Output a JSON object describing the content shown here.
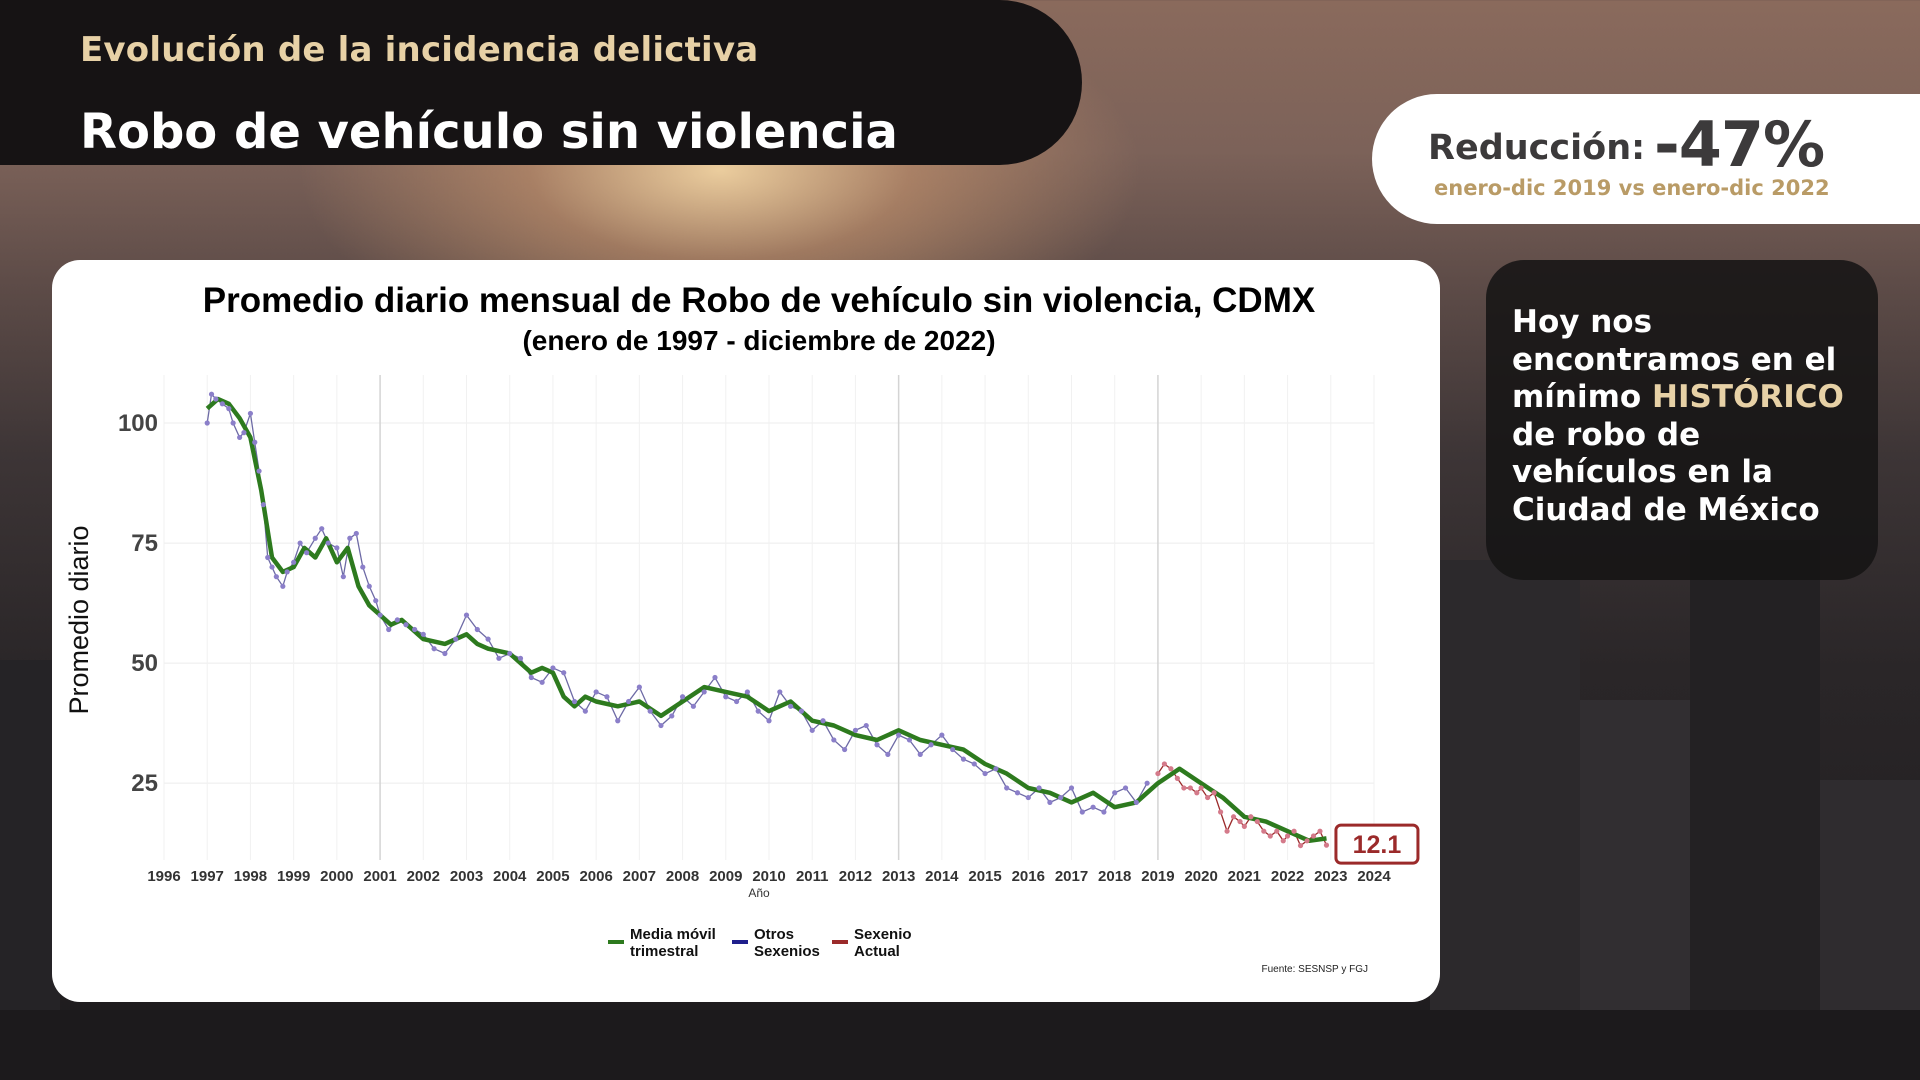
{
  "header": {
    "kicker": "Evolución de la incidencia delictiva",
    "title": "Robo de vehículo sin violencia"
  },
  "reduction": {
    "label": "Reducción:",
    "value": "-47%",
    "period": "enero-dic 2019 vs enero-dic 2022"
  },
  "side_message": {
    "line1": "Hoy nos",
    "line2": "encontramos en el",
    "line3_pre": "mínimo",
    "line3_highlight": "HISTÓRICO",
    "line4": "de robo de",
    "line5": "vehículos en la",
    "line6": "Ciudad de México"
  },
  "chart_data": {
    "type": "line",
    "title": "Promedio diario mensual de Robo de vehículo sin violencia, CDMX",
    "subtitle": "(enero de 1997 - diciembre de 2022)",
    "xlabel": "Año",
    "ylabel": "Promedio diario",
    "xlim": [
      1996,
      2024
    ],
    "ylim": [
      9,
      110
    ],
    "x_ticks": [
      1996,
      1997,
      1998,
      1999,
      2000,
      2001,
      2002,
      2003,
      2004,
      2005,
      2006,
      2007,
      2008,
      2009,
      2010,
      2011,
      2012,
      2013,
      2014,
      2015,
      2016,
      2017,
      2018,
      2019,
      2020,
      2021,
      2022,
      2023,
      2024
    ],
    "y_ticks": [
      25,
      50,
      75,
      100
    ],
    "vertical_lines": [
      2001,
      2013,
      2019
    ],
    "colors": {
      "moving_average": "#2d7a1e",
      "other_terms": "#1f1f8c",
      "current_term": "#9b2a2a",
      "points": "#8b7fc9",
      "current_points": "#d47a8a"
    },
    "series": [
      {
        "name": "Media móvil trimestral",
        "x": [
          1997.0,
          1997.25,
          1997.5,
          1997.75,
          1998.0,
          1998.25,
          1998.5,
          1998.75,
          1999.0,
          1999.25,
          1999.5,
          1999.75,
          2000.0,
          2000.25,
          2000.5,
          2000.75,
          2001.0,
          2001.25,
          2001.5,
          2001.75,
          2002.0,
          2002.5,
          2003.0,
          2003.25,
          2003.5,
          2004.0,
          2004.5,
          2004.75,
          2005.0,
          2005.25,
          2005.5,
          2005.75,
          2006.0,
          2006.5,
          2007.0,
          2007.5,
          2008.0,
          2008.5,
          2009.0,
          2009.5,
          2010.0,
          2010.5,
          2011.0,
          2011.5,
          2012.0,
          2012.5,
          2013.0,
          2013.5,
          2014.0,
          2014.5,
          2015.0,
          2015.5,
          2016.0,
          2016.5,
          2017.0,
          2017.5,
          2018.0,
          2018.5,
          2019.0,
          2019.5,
          2020.0,
          2020.5,
          2021.0,
          2021.5,
          2022.0,
          2022.5,
          2022.9
        ],
        "values": [
          103,
          105,
          104,
          101,
          97,
          86,
          72,
          69,
          70,
          74,
          72,
          76,
          71,
          74,
          66,
          62,
          60,
          58,
          59,
          57,
          55,
          54,
          56,
          54,
          53,
          52,
          48,
          49,
          48,
          43,
          41,
          43,
          42,
          41,
          42,
          39,
          42,
          45,
          44,
          43,
          40,
          42,
          38,
          37,
          35,
          34,
          36,
          34,
          33,
          32,
          29,
          27,
          24,
          23,
          21,
          23,
          20,
          21,
          25,
          28,
          25,
          22,
          18,
          17,
          15,
          13,
          13.5
        ]
      },
      {
        "name": "Otros Sexenios",
        "x": [
          1997.0,
          1997.1,
          1997.2,
          1997.35,
          1997.5,
          1997.6,
          1997.75,
          1997.85,
          1998.0,
          1998.1,
          1998.2,
          1998.3,
          1998.4,
          1998.5,
          1998.6,
          1998.75,
          1998.85,
          1999.0,
          1999.15,
          1999.3,
          1999.5,
          1999.65,
          1999.8,
          2000.0,
          2000.15,
          2000.3,
          2000.45,
          2000.6,
          2000.75,
          2000.9,
          2001.0,
          2001.2,
          2001.4,
          2001.6,
          2001.8,
          2002.0,
          2002.25,
          2002.5,
          2002.75,
          2003.0,
          2003.25,
          2003.5,
          2003.75,
          2004.0,
          2004.25,
          2004.5,
          2004.75,
          2005.0,
          2005.25,
          2005.5,
          2005.75,
          2006.0,
          2006.25,
          2006.5,
          2006.75,
          2007.0,
          2007.25,
          2007.5,
          2007.75,
          2008.0,
          2008.25,
          2008.5,
          2008.75,
          2009.0,
          2009.25,
          2009.5,
          2009.75,
          2010.0,
          2010.25,
          2010.5,
          2010.75,
          2011.0,
          2011.25,
          2011.5,
          2011.75,
          2012.0,
          2012.25,
          2012.5,
          2012.75,
          2013.0,
          2013.25,
          2013.5,
          2013.75,
          2014.0,
          2014.25,
          2014.5,
          2014.75,
          2015.0,
          2015.25,
          2015.5,
          2015.75,
          2016.0,
          2016.25,
          2016.5,
          2016.75,
          2017.0,
          2017.25,
          2017.5,
          2017.75,
          2018.0,
          2018.25,
          2018.5,
          2018.75
        ],
        "values": [
          100,
          106,
          105,
          104,
          103,
          100,
          97,
          98,
          102,
          96,
          90,
          83,
          72,
          70,
          68,
          66,
          69,
          71,
          75,
          73,
          76,
          78,
          75,
          74,
          68,
          76,
          77,
          70,
          66,
          63,
          60,
          57,
          59,
          58,
          57,
          56,
          53,
          52,
          55,
          60,
          57,
          55,
          51,
          52,
          51,
          47,
          46,
          49,
          48,
          42,
          40,
          44,
          43,
          38,
          42,
          45,
          40,
          37,
          39,
          43,
          41,
          44,
          47,
          43,
          42,
          44,
          40,
          38,
          44,
          41,
          40,
          36,
          38,
          34,
          32,
          36,
          37,
          33,
          31,
          35,
          34,
          31,
          33,
          35,
          32,
          30,
          29,
          27,
          28,
          24,
          23,
          22,
          24,
          21,
          22,
          24,
          19,
          20,
          19,
          23,
          24,
          21,
          25
        ]
      },
      {
        "name": "Sexenio Actual",
        "x": [
          2019.0,
          2019.15,
          2019.3,
          2019.45,
          2019.6,
          2019.75,
          2019.9,
          2020.0,
          2020.15,
          2020.3,
          2020.45,
          2020.6,
          2020.75,
          2020.9,
          2021.0,
          2021.15,
          2021.3,
          2021.45,
          2021.6,
          2021.75,
          2021.9,
          2022.0,
          2022.15,
          2022.3,
          2022.45,
          2022.6,
          2022.75,
          2022.9
        ],
        "values": [
          27,
          29,
          28,
          26,
          24,
          24,
          23,
          24,
          22,
          23,
          19,
          15,
          18,
          17,
          16,
          18,
          17,
          15,
          14,
          15,
          13,
          14,
          15,
          12,
          13,
          14,
          15,
          12.1
        ]
      }
    ],
    "annotations": [
      {
        "text": "12.1",
        "x": 2023.05,
        "y": 12.1
      }
    ],
    "legend": {
      "placement": "bottom-center",
      "items": [
        "Media móvil trimestral",
        "Otros Sexenios",
        "Sexenio Actual"
      ]
    },
    "source": "Fuente: SESNSP y FGJ",
    "grid": true
  }
}
